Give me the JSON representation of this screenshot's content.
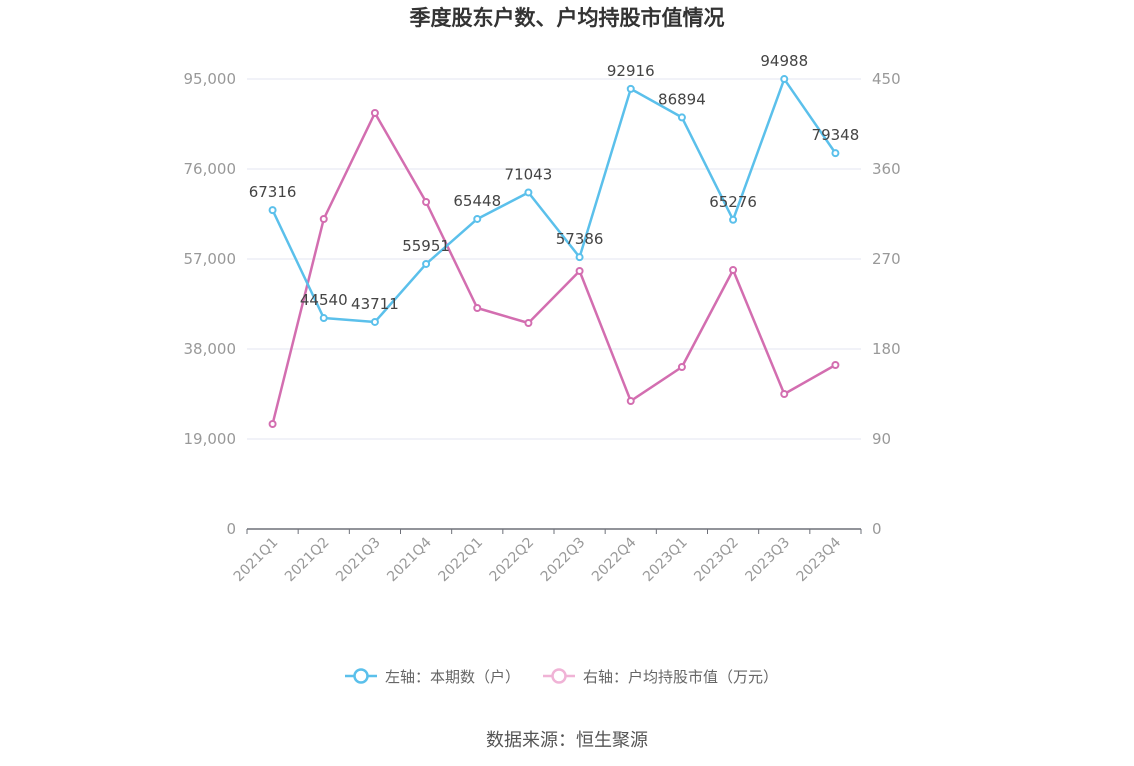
{
  "chart_data": {
    "type": "line",
    "title": "季度股东户数、户均持股市值情况",
    "categories": [
      "2021Q1",
      "2021Q2",
      "2021Q3",
      "2021Q4",
      "2022Q1",
      "2022Q2",
      "2022Q3",
      "2022Q4",
      "2023Q1",
      "2023Q2",
      "2023Q3",
      "2023Q4"
    ],
    "left_axis": {
      "ylim": [
        0,
        95000
      ],
      "ticks": [
        0,
        19000,
        38000,
        57000,
        76000,
        95000
      ],
      "tick_labels": [
        "0",
        "19,000",
        "38,000",
        "57,000",
        "76,000",
        "95,000"
      ]
    },
    "right_axis": {
      "ylim": [
        0,
        450
      ],
      "ticks": [
        0,
        90,
        180,
        270,
        360,
        450
      ],
      "tick_labels": [
        "0",
        "90",
        "180",
        "270",
        "360",
        "450"
      ]
    },
    "series": [
      {
        "name": "左轴：本期数（户）",
        "axis": "left",
        "color": "#5bc0eb",
        "values": [
          67316,
          44540,
          43711,
          55951,
          65448,
          71043,
          57386,
          92916,
          86894,
          65276,
          94988,
          79348
        ],
        "labels": [
          "67316",
          "44540",
          "43711",
          "55951",
          "65448",
          "71043",
          "57386",
          "92916",
          "86894",
          "65276",
          "94988",
          "79348"
        ]
      },
      {
        "name": "右轴：户均持股市值（万元）",
        "axis": "right",
        "color": "#d36eb0",
        "legend_color": "#f0b3d6",
        "values": [
          105,
          310,
          416,
          327,
          221,
          206,
          258,
          128,
          162,
          259,
          135,
          164
        ]
      }
    ],
    "legend_position": "bottom",
    "grid": true
  },
  "source": "数据来源：恒生聚源"
}
